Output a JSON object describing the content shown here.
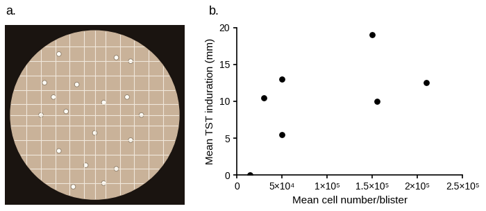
{
  "panel_labels": [
    "a.",
    "b."
  ],
  "chart_data": {
    "type": "scatter",
    "x_label": "Mean cell number/blister",
    "y_label": "Mean TST induration (mm)",
    "x": [
      15000,
      30000,
      50000,
      50000,
      150000,
      155000,
      210000
    ],
    "values": [
      0,
      10.5,
      13,
      5.5,
      19,
      10,
      12.5
    ],
    "color": "#000000",
    "marker": "circle",
    "xlim": [
      0,
      250000
    ],
    "xticks": [
      0,
      {
        "value": 50000,
        "label": "5×10⁴"
      },
      {
        "value": 100000,
        "label": "1×10⁵"
      },
      {
        "value": 150000,
        "label": "1.5×10⁵"
      },
      {
        "value": 200000,
        "label": "2×10⁵"
      },
      {
        "value": 250000,
        "label": "2.5×10⁵"
      }
    ],
    "ylim": [
      0,
      20
    ],
    "yticks": [
      0,
      5,
      10,
      15,
      20
    ],
    "grid": false
  }
}
